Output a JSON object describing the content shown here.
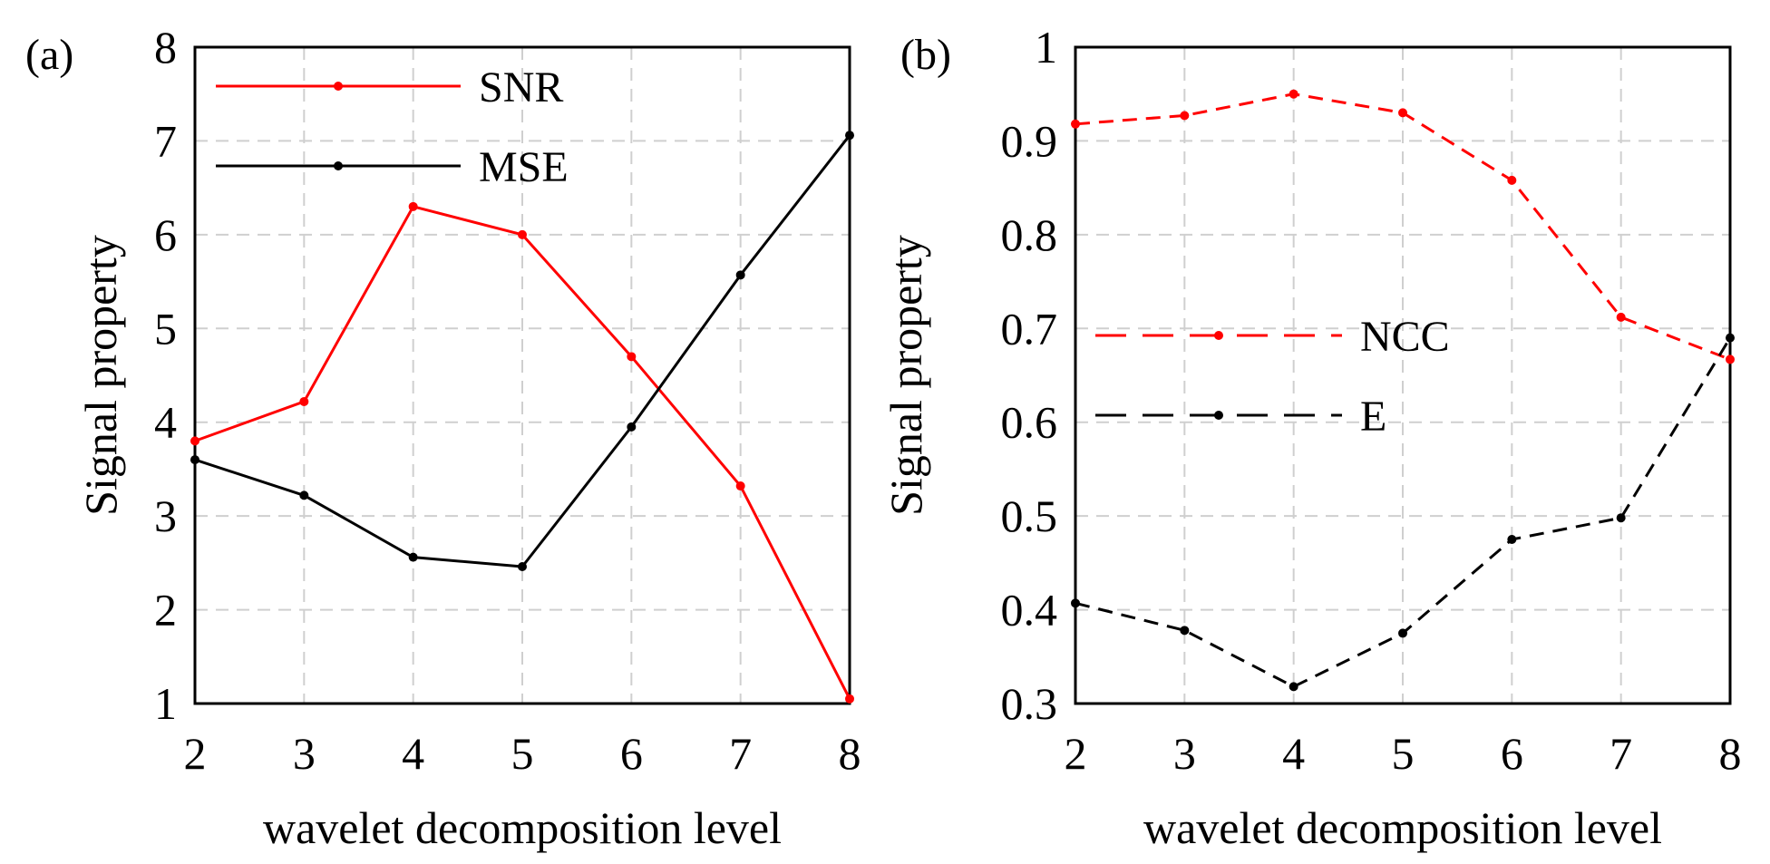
{
  "chart_data": [
    {
      "type": "line",
      "panel_label": "(a)",
      "xlabel": "wavelet decomposition level",
      "ylabel": "Signal property",
      "x": [
        2,
        3,
        4,
        5,
        6,
        7,
        8
      ],
      "xlim": [
        2,
        8
      ],
      "ylim": [
        1,
        8
      ],
      "xticks": [
        "2",
        "3",
        "4",
        "5",
        "6",
        "7",
        "8"
      ],
      "yticks": [
        "1",
        "2",
        "3",
        "4",
        "5",
        "6",
        "7",
        "8"
      ],
      "grid": true,
      "legend_position": "top-left",
      "series": [
        {
          "name": "SNR",
          "color": "#ff0000",
          "line_style": "solid",
          "values": [
            3.8,
            4.22,
            6.3,
            6.0,
            4.7,
            3.32,
            1.05
          ]
        },
        {
          "name": "MSE",
          "color": "#000000",
          "line_style": "solid",
          "values": [
            3.6,
            3.22,
            2.56,
            2.46,
            3.95,
            5.57,
            7.06
          ]
        }
      ]
    },
    {
      "type": "line",
      "panel_label": "(b)",
      "xlabel": "wavelet decomposition level",
      "ylabel": "Signal property",
      "x": [
        2,
        3,
        4,
        5,
        6,
        7,
        8
      ],
      "xlim": [
        2,
        8
      ],
      "ylim": [
        0.3,
        1
      ],
      "xticks": [
        "2",
        "3",
        "4",
        "5",
        "6",
        "7",
        "8"
      ],
      "yticks": [
        "0.3",
        "0.4",
        "0.5",
        "0.6",
        "0.7",
        "0.8",
        "0.9",
        "1"
      ],
      "grid": true,
      "legend_position": "center-left",
      "series": [
        {
          "name": "NCC",
          "color": "#ff0000",
          "line_style": "dashed",
          "values": [
            0.918,
            0.927,
            0.95,
            0.93,
            0.858,
            0.712,
            0.667
          ]
        },
        {
          "name": "E",
          "color": "#000000",
          "line_style": "dashed",
          "values": [
            0.407,
            0.378,
            0.318,
            0.375,
            0.475,
            0.498,
            0.69
          ]
        }
      ]
    }
  ]
}
